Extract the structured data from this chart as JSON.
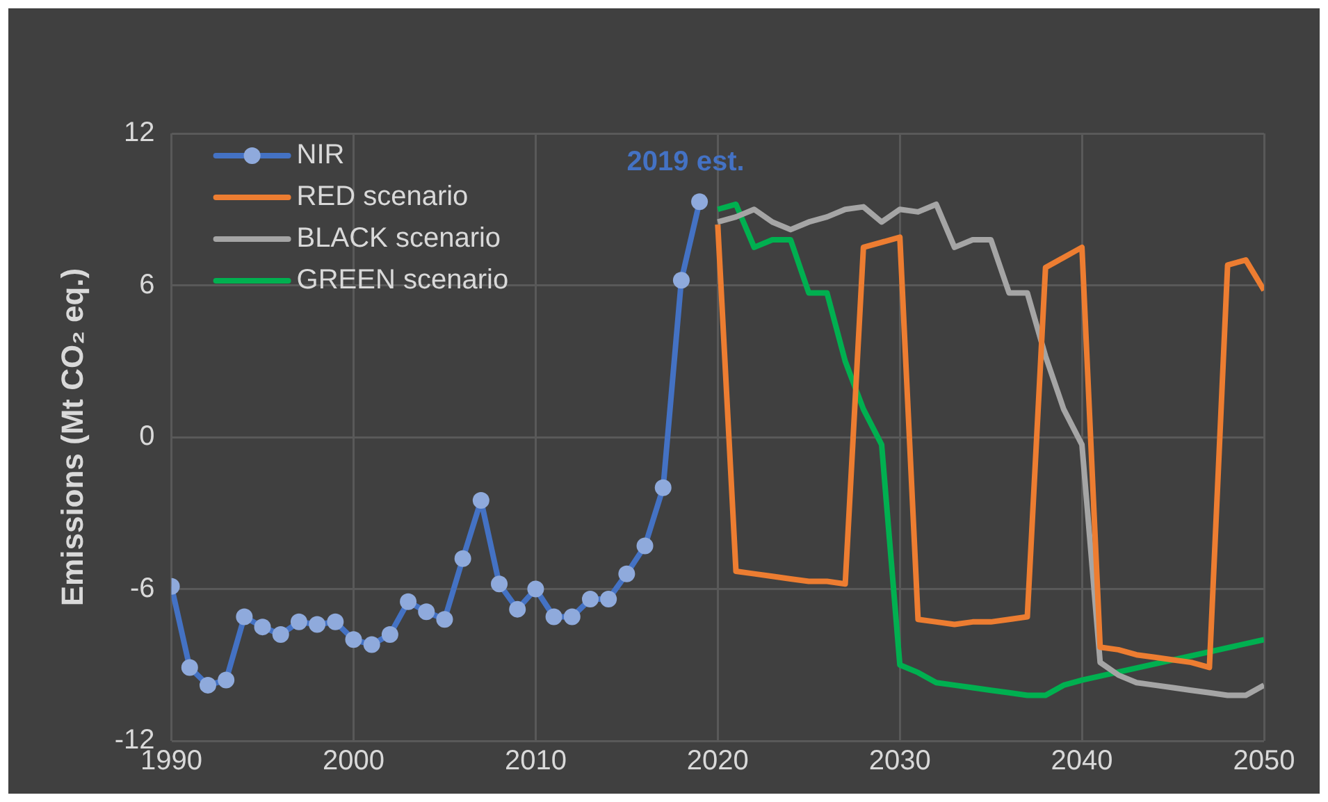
{
  "chart_data": {
    "type": "line",
    "ylabel": "Emissions (Mt CO₂ eq.)",
    "xlim": [
      1990,
      2050
    ],
    "xticks": [
      1990,
      2000,
      2010,
      2020,
      2030,
      2040,
      2050
    ],
    "ylim": [
      -12,
      12
    ],
    "yticks": [
      -12,
      -6,
      0,
      6,
      12
    ],
    "grid": true,
    "legend": "top left",
    "line_style": "solid",
    "annotations": [
      {
        "text": "2019 est.",
        "x": 2019,
        "y": 9.3
      }
    ],
    "series": [
      {
        "name": "NIR",
        "color": "#4472c4",
        "marker": "circle",
        "x": [
          1990,
          1991,
          1992,
          1993,
          1994,
          1995,
          1996,
          1997,
          1998,
          1999,
          2000,
          2001,
          2002,
          2003,
          2004,
          2005,
          2006,
          2007,
          2008,
          2009,
          2010,
          2011,
          2012,
          2013,
          2014,
          2015,
          2016,
          2017,
          2018,
          2019
        ],
        "values": [
          -5.9,
          -9.1,
          -9.8,
          -9.6,
          -7.1,
          -7.5,
          -7.8,
          -7.3,
          -7.4,
          -7.3,
          -8.0,
          -8.2,
          -7.8,
          -6.5,
          -6.9,
          -7.2,
          -4.8,
          -2.5,
          -5.8,
          -6.8,
          -6.0,
          -7.1,
          -7.1,
          -6.4,
          -6.4,
          -5.4,
          -4.3,
          -2.0,
          6.2,
          9.3
        ]
      },
      {
        "name": "RED scenario",
        "color": "#ed7d31",
        "marker": "none",
        "x": [
          2020,
          2021,
          2022,
          2023,
          2024,
          2025,
          2026,
          2027,
          2028,
          2029,
          2030,
          2031,
          2032,
          2033,
          2034,
          2035,
          2036,
          2037,
          2038,
          2039,
          2040,
          2041,
          2042,
          2043,
          2044,
          2045,
          2046,
          2047,
          2048,
          2049,
          2050
        ],
        "values": [
          8.4,
          -5.3,
          -5.4,
          -5.5,
          -5.6,
          -5.7,
          -5.7,
          -5.8,
          7.5,
          7.7,
          7.9,
          -7.2,
          -7.3,
          -7.4,
          -7.3,
          -7.3,
          -7.2,
          -7.1,
          6.7,
          7.1,
          7.5,
          -8.3,
          -8.4,
          -8.6,
          -8.7,
          -8.8,
          -8.9,
          -9.1,
          6.8,
          7.0,
          5.8
        ]
      },
      {
        "name": "BLACK scenario",
        "color": "#a5a5a5",
        "marker": "none",
        "x": [
          2020,
          2021,
          2022,
          2023,
          2024,
          2025,
          2026,
          2027,
          2028,
          2029,
          2030,
          2031,
          2032,
          2033,
          2034,
          2035,
          2036,
          2037,
          2038,
          2039,
          2040,
          2041,
          2042,
          2043,
          2044,
          2045,
          2046,
          2047,
          2048,
          2049,
          2050
        ],
        "values": [
          8.5,
          8.7,
          9.0,
          8.5,
          8.2,
          8.5,
          8.7,
          9.0,
          9.1,
          8.5,
          9.0,
          8.9,
          9.2,
          7.5,
          7.8,
          7.8,
          5.7,
          5.7,
          3.2,
          1.1,
          -0.3,
          -8.9,
          -9.4,
          -9.7,
          -9.8,
          -9.9,
          -10.0,
          -10.1,
          -10.2,
          -10.2,
          -9.8
        ]
      },
      {
        "name": "GREEN scenario",
        "color": "#00b050",
        "marker": "none",
        "x": [
          2020,
          2021,
          2022,
          2023,
          2024,
          2025,
          2026,
          2027,
          2028,
          2029,
          2030,
          2031,
          2032,
          2033,
          2034,
          2035,
          2036,
          2037,
          2038,
          2039,
          2040,
          2050
        ],
        "values": [
          9.0,
          9.2,
          7.5,
          7.8,
          7.8,
          5.7,
          5.7,
          3.0,
          1.1,
          -0.3,
          -9.0,
          -9.3,
          -9.7,
          -9.8,
          -9.9,
          -10.0,
          -10.1,
          -10.2,
          -10.2,
          -9.8,
          -9.6,
          -8.0
        ]
      }
    ]
  }
}
